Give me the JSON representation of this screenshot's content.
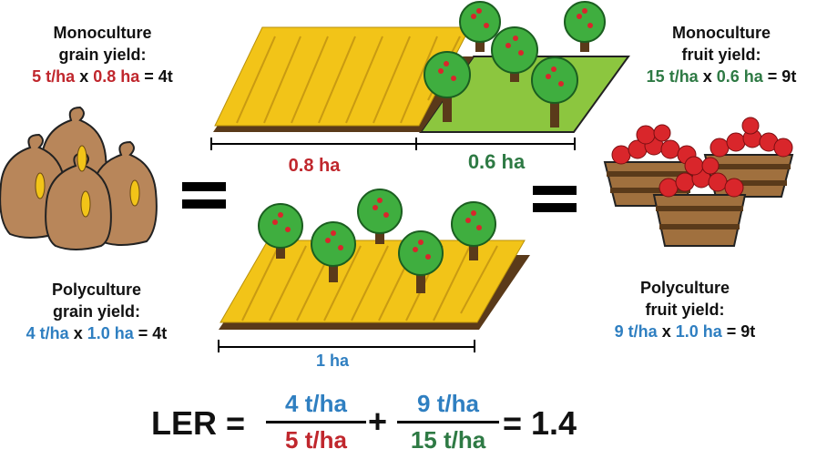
{
  "mono_grain": {
    "title1": "Monoculture",
    "title2": "grain yield:",
    "yield": "5 t/ha",
    "times": "x",
    "area": "0.8 ha",
    "result": "= 4t"
  },
  "mono_fruit": {
    "title1": "Monoculture",
    "title2": "fruit yield:",
    "yield": "15 t/ha",
    "times": "x",
    "area": "0.6 ha",
    "result": "= 9t"
  },
  "poly_grain": {
    "title1": "Polyculture",
    "title2": "grain yield:",
    "yield": "4 t/ha",
    "times": "x",
    "area": "1.0 ha",
    "result": "= 4t"
  },
  "poly_fruit": {
    "title1": "Polyculture",
    "title2": "fruit yield:",
    "yield": "9 t/ha",
    "times": "x",
    "area": "1.0 ha",
    "result": "= 9t"
  },
  "top_field": {
    "grain_width": "0.8 ha",
    "fruit_width": "0.6 ha"
  },
  "bottom_field": {
    "width": "1 ha"
  },
  "formula": {
    "ler": "LER =",
    "frac1_num": "4 t/ha",
    "frac1_den": "5 t/ha",
    "plus": "+",
    "frac2_num": "9 t/ha",
    "frac2_den": "15 t/ha",
    "result": "= 1.4"
  },
  "colors": {
    "monoculture_grain": "#c0272d",
    "monoculture_fruit": "#2e7a44",
    "polyculture": "#2f7fc1",
    "grass": "#8cc63f",
    "wheat": "#f2c418",
    "soil": "#5a3a1a"
  }
}
